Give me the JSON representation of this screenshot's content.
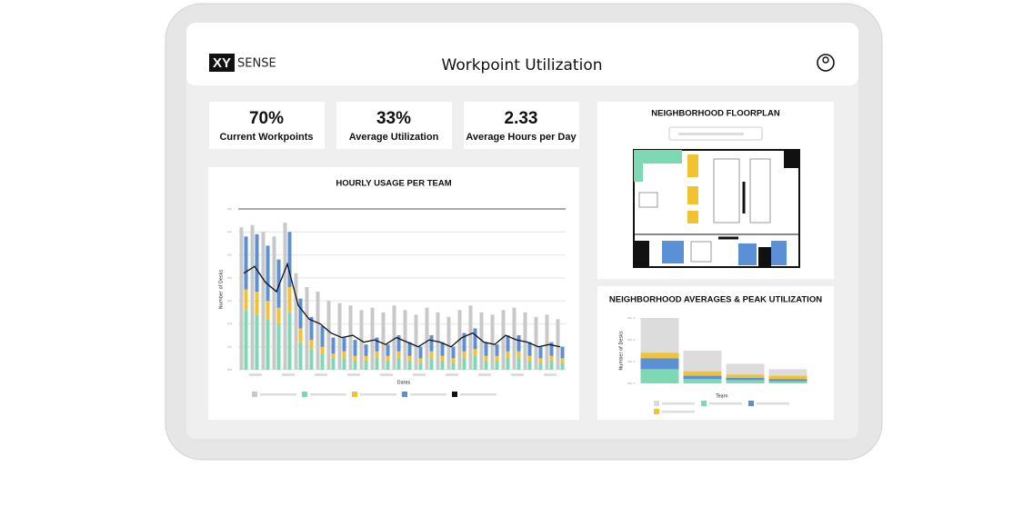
{
  "header": {
    "logo_mark": "XY",
    "logo_text": "SENSE",
    "title": "Workpoint Utilization"
  },
  "kpis": [
    {
      "value": "70%",
      "label": "Current Workpoints"
    },
    {
      "value": "33%",
      "label": "Average Utilization"
    },
    {
      "value": "2.33",
      "label": "Average Hours per Day"
    }
  ],
  "floorplan": {
    "title": "NEIGHBORHOOD FLOORPLAN"
  },
  "chart_data": [
    {
      "type": "bar",
      "title": "HOURLY USAGE PER TEAM",
      "x_label": "Dates",
      "y_label": "Number of Desks",
      "ylim": [
        0,
        7
      ],
      "yticks": [
        0,
        1,
        2,
        3,
        4,
        5,
        6,
        7
      ],
      "grid": true,
      "series": [
        {
          "color": "#c8c8c8",
          "values": [
            6.2,
            6.3,
            6.0,
            5.8,
            6.4,
            4.2,
            3.6,
            3.4,
            3.0,
            2.9,
            2.8,
            2.6,
            2.7,
            2.5,
            2.8,
            2.6,
            2.4,
            2.7,
            2.5,
            2.3,
            2.6,
            2.8,
            2.5,
            2.4,
            2.6,
            2.7,
            2.5,
            2.3,
            2.4,
            2.2
          ]
        },
        {
          "color": "#7dd9b4",
          "stack": true,
          "values": [
            2.6,
            2.4,
            2.2,
            2.0,
            2.5,
            1.2,
            0.9,
            0.7,
            0.5,
            0.5,
            0.4,
            0.4,
            0.5,
            0.4,
            0.5,
            0.4,
            0.3,
            0.5,
            0.4,
            0.3,
            0.5,
            0.6,
            0.4,
            0.4,
            0.5,
            0.5,
            0.4,
            0.3,
            0.4,
            0.3
          ]
        },
        {
          "color": "#f2c230",
          "stack": true,
          "values": [
            0.9,
            1.0,
            0.8,
            0.7,
            1.1,
            0.6,
            0.4,
            0.3,
            0.2,
            0.3,
            0.2,
            0.2,
            0.3,
            0.2,
            0.3,
            0.2,
            0.2,
            0.3,
            0.2,
            0.2,
            0.3,
            0.3,
            0.2,
            0.2,
            0.3,
            0.3,
            0.2,
            0.2,
            0.2,
            0.2
          ]
        },
        {
          "color": "#5b8fd6",
          "stack": true,
          "values": [
            2.3,
            2.5,
            2.4,
            2.1,
            2.4,
            1.3,
            1.0,
            0.9,
            0.7,
            0.6,
            0.7,
            0.5,
            0.6,
            0.5,
            0.7,
            0.6,
            0.5,
            0.7,
            0.6,
            0.5,
            0.8,
            0.9,
            0.6,
            0.5,
            0.7,
            0.7,
            0.6,
            0.5,
            0.6,
            0.5
          ]
        },
        {
          "color": "#111111",
          "type": "line",
          "values": [
            4.2,
            4.5,
            3.8,
            3.4,
            4.6,
            2.8,
            2.2,
            2.0,
            1.6,
            1.4,
            1.5,
            1.2,
            1.3,
            1.1,
            1.4,
            1.2,
            1.0,
            1.3,
            1.2,
            1.0,
            1.4,
            1.6,
            1.2,
            1.1,
            1.5,
            1.3,
            1.2,
            1.0,
            1.1,
            1.0
          ]
        }
      ]
    },
    {
      "type": "bar",
      "title": "NEIGHBORHOOD AVERAGES & PEAK UTILIZATION",
      "x_label": "Team",
      "y_label": "Number of Desks",
      "ylim": [
        0,
        6
      ],
      "yticks": [
        0,
        2,
        4,
        6
      ],
      "grid": false,
      "series": [
        {
          "color": "#dcdcdc",
          "values": [
            6.0,
            3.0,
            1.8,
            1.3
          ]
        },
        {
          "color": "#7dd9b4",
          "stack": true,
          "values": [
            1.3,
            0.4,
            0.3,
            0.2
          ]
        },
        {
          "color": "#5b8fd6",
          "stack": true,
          "values": [
            1.0,
            0.3,
            0.2,
            0.2
          ]
        },
        {
          "color": "#f2c230",
          "stack": true,
          "values": [
            0.5,
            0.4,
            0.3,
            0.3
          ]
        }
      ]
    }
  ]
}
